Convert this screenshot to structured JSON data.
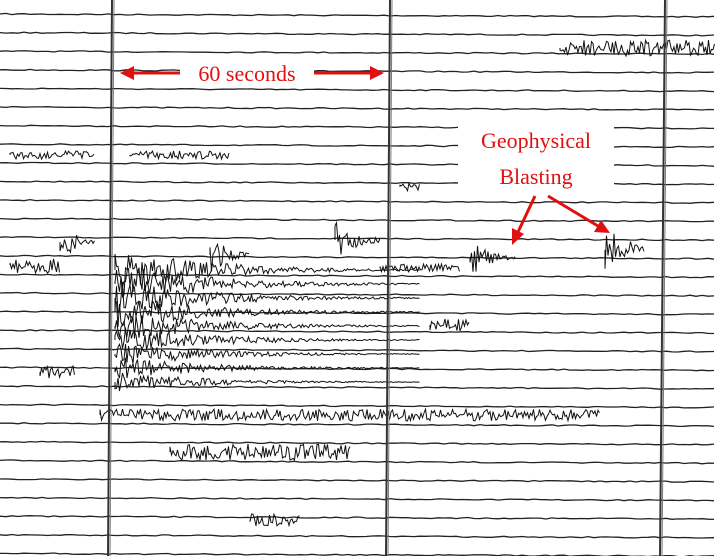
{
  "annotations": {
    "interval": "60 seconds",
    "blast_label_line1": "Geophysical",
    "blast_label_line2": "Blasting"
  }
}
